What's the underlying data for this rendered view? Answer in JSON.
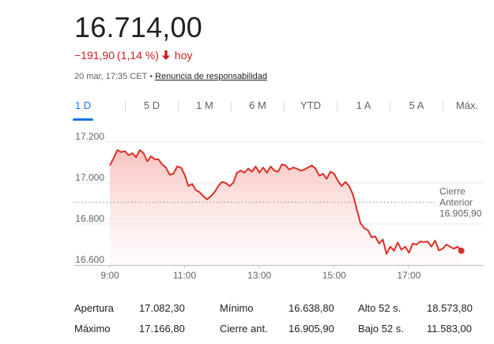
{
  "quote": {
    "price": "16.714,00",
    "change": "−191,90",
    "change_pct": "(1,14 %)",
    "change_period": "hoy",
    "negative_color": "#c5221f",
    "timestamp": "20 mar, 17:35 CET",
    "separator": "•",
    "disclaimer_link": "Renuncia de responsabilidad",
    "arrow_icon": "arrow-down-icon"
  },
  "tabs": [
    {
      "label": "1 D",
      "active": true
    },
    {
      "label": "5 D",
      "active": false
    },
    {
      "label": "1 M",
      "active": false
    },
    {
      "label": "6 M",
      "active": false
    },
    {
      "label": "YTD",
      "active": false
    },
    {
      "label": "1 A",
      "active": false
    },
    {
      "label": "5 A",
      "active": false
    },
    {
      "label": "Máx.",
      "active": false
    }
  ],
  "chart_data": {
    "type": "area",
    "x_ticks": [
      "9:00",
      "11:00",
      "13:00",
      "15:00",
      "17:00"
    ],
    "y_ticks": [
      "17.200",
      "17.000",
      "16.800",
      "16.600"
    ],
    "ylim": [
      16600,
      17230
    ],
    "x_range_hours": [
      9.0,
      19.0
    ],
    "line_color": "#d93025",
    "previous_close": {
      "label_lines": [
        "Cierre",
        "Anterior",
        "16.905,90"
      ],
      "value": 16905.9
    },
    "series": [
      {
        "points": [
          [
            9.0,
            17085
          ],
          [
            9.1,
            17120
          ],
          [
            9.2,
            17160
          ],
          [
            9.3,
            17150
          ],
          [
            9.4,
            17155
          ],
          [
            9.5,
            17135
          ],
          [
            9.6,
            17145
          ],
          [
            9.7,
            17125
          ],
          [
            9.8,
            17160
          ],
          [
            9.9,
            17145
          ],
          [
            10.0,
            17105
          ],
          [
            10.1,
            17130
          ],
          [
            10.2,
            17115
          ],
          [
            10.3,
            17115
          ],
          [
            10.4,
            17090
          ],
          [
            10.5,
            17075
          ],
          [
            10.6,
            17040
          ],
          [
            10.7,
            17045
          ],
          [
            10.8,
            17080
          ],
          [
            10.9,
            17075
          ],
          [
            11.0,
            17040
          ],
          [
            11.1,
            16985
          ],
          [
            11.2,
            16995
          ],
          [
            11.3,
            16965
          ],
          [
            11.4,
            16955
          ],
          [
            11.5,
            16935
          ],
          [
            11.6,
            16920
          ],
          [
            11.7,
            16935
          ],
          [
            11.8,
            16955
          ],
          [
            11.9,
            16985
          ],
          [
            12.0,
            17005
          ],
          [
            12.1,
            17000
          ],
          [
            12.2,
            16985
          ],
          [
            12.3,
            17000
          ],
          [
            12.4,
            17050
          ],
          [
            12.5,
            17060
          ],
          [
            12.6,
            17050
          ],
          [
            12.7,
            17070
          ],
          [
            12.8,
            17055
          ],
          [
            12.9,
            17080
          ],
          [
            13.0,
            17050
          ],
          [
            13.1,
            17075
          ],
          [
            13.2,
            17050
          ],
          [
            13.3,
            17080
          ],
          [
            13.4,
            17060
          ],
          [
            13.5,
            17055
          ],
          [
            13.6,
            17090
          ],
          [
            13.7,
            17085
          ],
          [
            13.8,
            17065
          ],
          [
            13.9,
            17075
          ],
          [
            14.0,
            17070
          ],
          [
            14.1,
            17060
          ],
          [
            14.2,
            17065
          ],
          [
            14.3,
            17075
          ],
          [
            14.4,
            17085
          ],
          [
            14.5,
            17070
          ],
          [
            14.6,
            17035
          ],
          [
            14.7,
            17045
          ],
          [
            14.8,
            17020
          ],
          [
            14.9,
            17055
          ],
          [
            15.0,
            17045
          ],
          [
            15.1,
            17010
          ],
          [
            15.2,
            16985
          ],
          [
            15.3,
            17005
          ],
          [
            15.4,
            16985
          ],
          [
            15.5,
            16945
          ],
          [
            15.6,
            16875
          ],
          [
            15.7,
            16805
          ],
          [
            15.8,
            16780
          ],
          [
            15.9,
            16770
          ],
          [
            16.0,
            16735
          ],
          [
            16.1,
            16740
          ],
          [
            16.2,
            16705
          ],
          [
            16.3,
            16725
          ],
          [
            16.4,
            16655
          ],
          [
            16.5,
            16690
          ],
          [
            16.6,
            16670
          ],
          [
            16.7,
            16710
          ],
          [
            16.8,
            16675
          ],
          [
            16.9,
            16690
          ],
          [
            17.0,
            16660
          ],
          [
            17.1,
            16705
          ],
          [
            17.2,
            16700
          ],
          [
            17.3,
            16715
          ],
          [
            17.4,
            16712
          ],
          [
            17.5,
            16715
          ],
          [
            17.6,
            16690
          ],
          [
            17.7,
            16720
          ],
          [
            17.8,
            16672
          ],
          [
            17.9,
            16680
          ],
          [
            18.0,
            16700
          ],
          [
            18.1,
            16690
          ],
          [
            18.2,
            16680
          ],
          [
            18.3,
            16690
          ],
          [
            18.4,
            16670
          ]
        ],
        "last_point_marker": true
      }
    ]
  },
  "stats": {
    "rows": [
      [
        {
          "label": "Apertura",
          "value": "17.082,30"
        },
        {
          "label": "Mínimo",
          "value": "16.638,80"
        },
        {
          "label": "Alto 52 s.",
          "value": "18.573,80"
        }
      ],
      [
        {
          "label": "Máximo",
          "value": "17.166,80"
        },
        {
          "label": "Cierre ant.",
          "value": "16.905,90"
        },
        {
          "label": "Bajo 52 s.",
          "value": "11.583,00"
        }
      ]
    ]
  }
}
